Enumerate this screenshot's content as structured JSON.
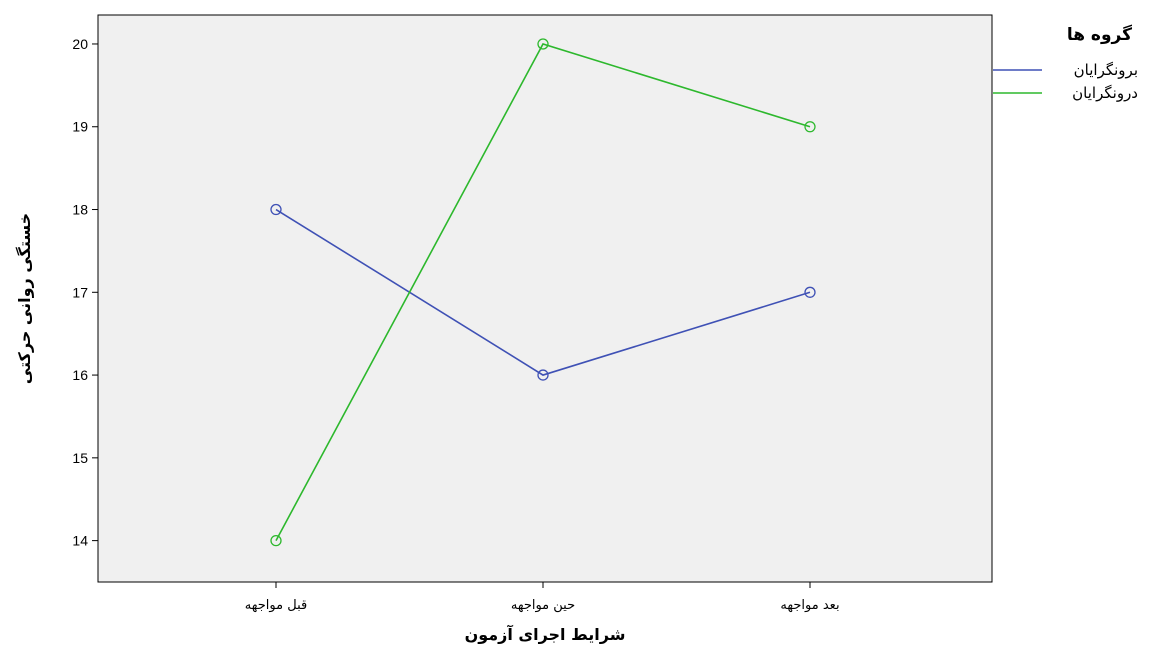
{
  "chart_data": {
    "type": "line",
    "categories": [
      "قبل مواجهه",
      "حین مواجهه",
      "بعد مواجهه"
    ],
    "series": [
      {
        "name": "برونگرایان",
        "color": "#3f51b5",
        "values": [
          18,
          16,
          17
        ]
      },
      {
        "name": "درونگرایان",
        "color": "#2db82d",
        "values": [
          14,
          20,
          19
        ]
      }
    ],
    "xlabel": "شرایط اجرای آزمون",
    "ylabel": "خستگی روانی حرکتی",
    "ylim": [
      13.5,
      20.35
    ],
    "yticks": [
      14,
      15,
      16,
      17,
      18,
      19,
      20
    ],
    "grid": false,
    "plot_background": "#f0f0f0",
    "legend": {
      "title": "گروه ها",
      "placement": "top-right outside"
    }
  }
}
